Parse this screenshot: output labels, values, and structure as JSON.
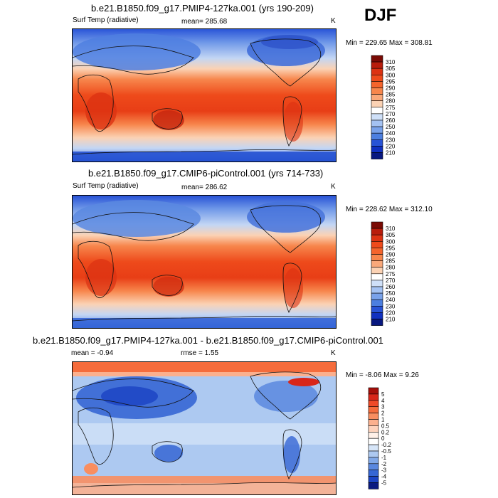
{
  "season": "DJF",
  "panels": [
    {
      "title": "b.e21.B1850.f09_g17.PMIP4-127ka.001 (yrs 190-209)",
      "variable": "Surf Temp (radiative)",
      "mean": "mean= 285.68",
      "units": "K",
      "minmax": "Min = 229.65 Max = 308.81"
    },
    {
      "title": "b.e21.B1850.f09_g17.CMIP6-piControl.001 (yrs 714-733)",
      "variable": "Surf Temp (radiative)",
      "mean": "mean= 286.62",
      "units": "K",
      "minmax": "Min = 228.62 Max = 312.10"
    },
    {
      "title": "b.e21.B1850.f09_g17.PMIP4-127ka.001 - b.e21.B1850.f09_g17.CMIP6-piControl.001",
      "mean": "mean =  -0.94",
      "rmse": "rmse =   1.55",
      "units": "K",
      "minmax": "Min =  -8.06 Max =   9.26"
    }
  ],
  "colorbars": {
    "absolute": {
      "labels": [
        "310",
        "305",
        "300",
        "295",
        "290",
        "285",
        "280",
        "275",
        "270",
        "260",
        "250",
        "240",
        "230",
        "220",
        "210"
      ],
      "colors": [
        "#7a0a04",
        "#b81c0b",
        "#dc3212",
        "#ee4a1b",
        "#f4642c",
        "#f7864c",
        "#f9a87a",
        "#fbd2b4",
        "#ffffff",
        "#cfe0f8",
        "#a4c2f2",
        "#79a2ea",
        "#4c7fe0",
        "#2853d6",
        "#1030c0",
        "#081880"
      ]
    },
    "difference": {
      "labels": [
        "5",
        "4",
        "3",
        "2",
        "1",
        "0.5",
        "0.2",
        "0",
        "-0.2",
        "-0.5",
        "-1",
        "-2",
        "-3",
        "-4",
        "-5"
      ],
      "colors": [
        "#a50f0a",
        "#d8261a",
        "#ef4a28",
        "#f56c3c",
        "#f98e60",
        "#fbb08e",
        "#fdd2bc",
        "#fff0e8",
        "#ffffff",
        "#d6e5f8",
        "#adc9f1",
        "#82a9e8",
        "#5a88df",
        "#3666d4",
        "#1c44c4",
        "#0a1a80"
      ]
    }
  }
}
